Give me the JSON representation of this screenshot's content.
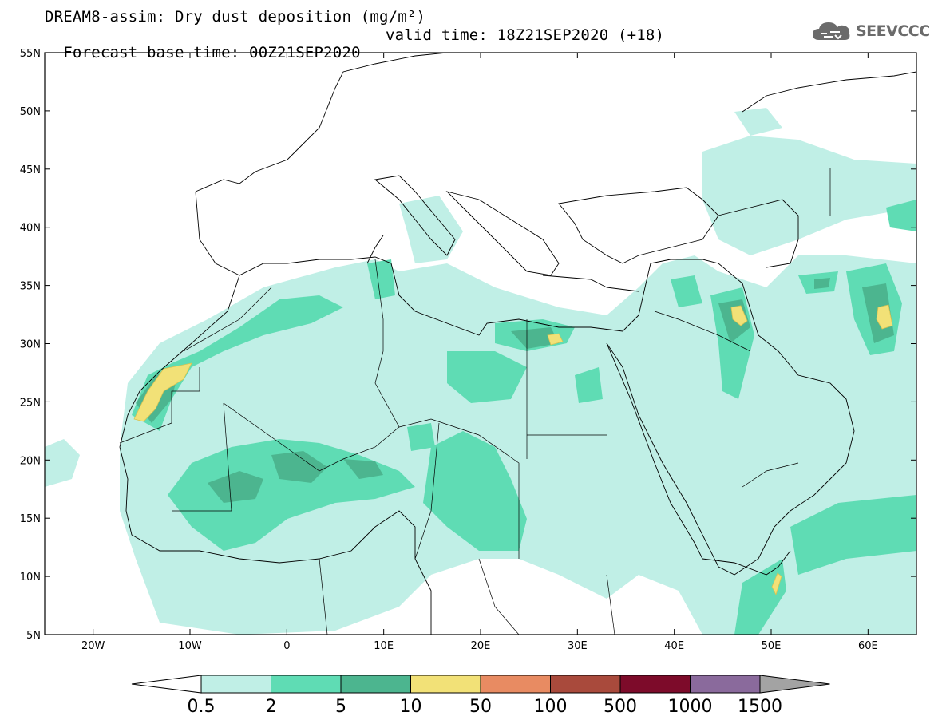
{
  "title": {
    "line1": "DREAM8-assim: Dry dust deposition (mg/m²)",
    "line2_base": "Forecast base time: 00Z21SEP2020",
    "line2_valid": "valid time: 18Z21SEP2020 (+18)"
  },
  "logo": {
    "text": "SEEVCCC",
    "icon": "cloud-icon"
  },
  "map": {
    "lon_range": [
      -25,
      65
    ],
    "lat_range": [
      5,
      55
    ],
    "lat_ticks": [
      {
        "value": 55,
        "label": "55N"
      },
      {
        "value": 50,
        "label": "50N"
      },
      {
        "value": 45,
        "label": "45N"
      },
      {
        "value": 40,
        "label": "40N"
      },
      {
        "value": 35,
        "label": "35N"
      },
      {
        "value": 30,
        "label": "30N"
      },
      {
        "value": 25,
        "label": "25N"
      },
      {
        "value": 20,
        "label": "20N"
      },
      {
        "value": 15,
        "label": "15N"
      },
      {
        "value": 10,
        "label": "10N"
      },
      {
        "value": 5,
        "label": "5N"
      }
    ],
    "lon_ticks": [
      {
        "value": -20,
        "label": "20W"
      },
      {
        "value": -10,
        "label": "10W"
      },
      {
        "value": 0,
        "label": "0"
      },
      {
        "value": 10,
        "label": "10E"
      },
      {
        "value": 20,
        "label": "20E"
      },
      {
        "value": 30,
        "label": "30E"
      },
      {
        "value": 40,
        "label": "40E"
      },
      {
        "value": 50,
        "label": "50E"
      },
      {
        "value": 60,
        "label": "60E"
      }
    ]
  },
  "colorbar": {
    "labels": [
      "0.5",
      "2",
      "5",
      "10",
      "50",
      "100",
      "500",
      "1000",
      "1500"
    ],
    "colors": [
      "#c0efe6",
      "#5fdcb4",
      "#4cb58f",
      "#f2e177",
      "#e88b62",
      "#a94a3c",
      "#7d0b2a",
      "#8a6a9c",
      "#a3a3a3"
    ]
  }
}
